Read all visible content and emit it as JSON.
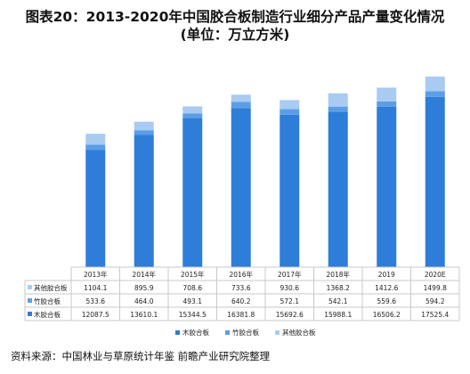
{
  "title_line1": "图表20：2013-2020年中国胶合板制造行业细分产品产量变化情况",
  "title_line2": "(单位：万立方米)",
  "source": "资料来源：中国林业与草原统计年鉴 前瞻产业研究院整理",
  "chart_data": {
    "type": "bar",
    "stacked": true,
    "title": "图表20：2013-2020年中国胶合板制造行业细分产品产量变化情况 (单位：万立方米)",
    "categories": [
      "2013年",
      "2014年",
      "2015年",
      "2016年",
      "2017年",
      "2018年",
      "2019",
      "2020E"
    ],
    "series": [
      {
        "name": "木胶合板",
        "color": "#2e7dd8",
        "values": [
          12087.5,
          13610.1,
          15344.5,
          16381.8,
          15692.6,
          15988.1,
          16506.2,
          17525.4
        ],
        "labels": [
          "12087.5",
          "13610.1",
          "15344.5",
          "16381.8",
          "15692.6",
          "15988.1",
          "16506.2",
          "17525.4"
        ]
      },
      {
        "name": "竹胶合板",
        "color": "#5b9ee6",
        "values": [
          533.6,
          464.0,
          493.1,
          640.2,
          572.1,
          542.1,
          559.6,
          594.2
        ],
        "labels": [
          "533.6",
          "464.0",
          "493.1",
          "640.2",
          "572.1",
          "542.1",
          "559.6",
          "594.2"
        ]
      },
      {
        "name": "其他胶合板",
        "color": "#a9cbf2",
        "values": [
          1104.1,
          895.9,
          708.6,
          733.6,
          930.6,
          1368.2,
          1412.6,
          1499.8
        ],
        "labels": [
          "1104.1",
          "895.9",
          "708.6",
          "733.6",
          "930.6",
          "1368.2",
          "1412.6",
          "1499.8"
        ]
      }
    ],
    "table_rows": [
      "其他胶合板",
      "竹胶合板",
      "木胶合板"
    ],
    "legend": [
      "木胶合板",
      "竹胶合板",
      "其他胶合板"
    ],
    "legend_position": "bottom",
    "ylim": [
      0,
      22000
    ],
    "grid": false,
    "data_table": true
  }
}
